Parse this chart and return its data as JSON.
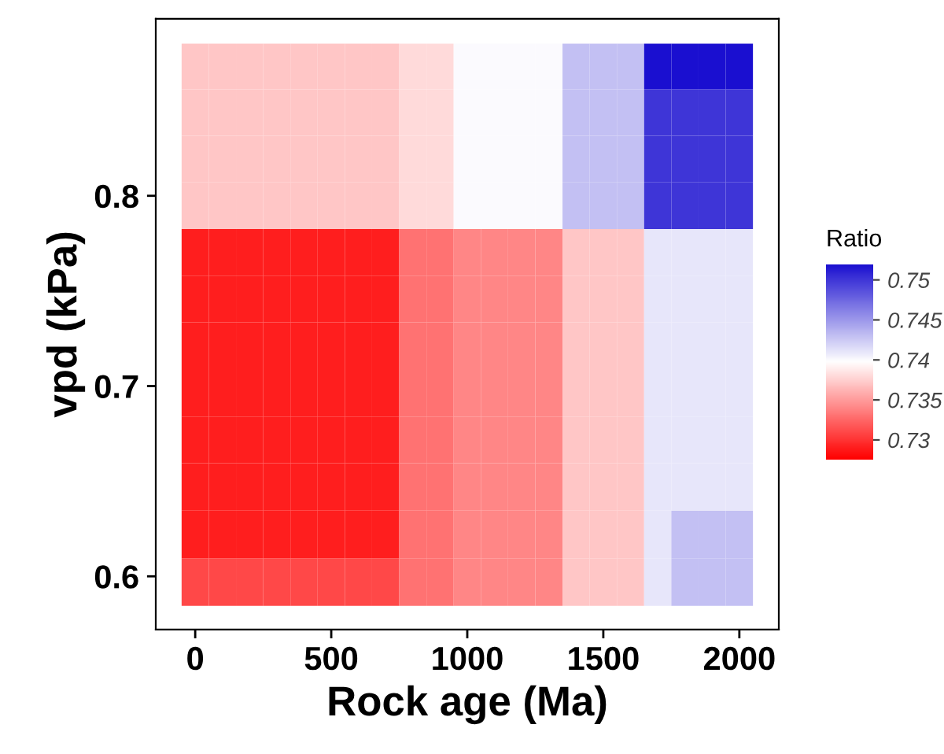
{
  "chart_data": {
    "type": "heatmap",
    "xlabel": "Rock age (Ma)",
    "ylabel": "vpd (kPa)",
    "clabel": "Ratio",
    "x": [
      0,
      100,
      200,
      300,
      400,
      500,
      600,
      700,
      800,
      900,
      1000,
      1100,
      1200,
      1300,
      1400,
      1500,
      1600,
      1700,
      1800,
      1900,
      2000
    ],
    "y": [
      0.868,
      0.844,
      0.819,
      0.795,
      0.77,
      0.746,
      0.721,
      0.696,
      0.672,
      0.647,
      0.622,
      0.597
    ],
    "xlim": [
      -145,
      2145
    ],
    "xticks": [
      0,
      500,
      1000,
      1500,
      2000
    ],
    "ylim": [
      0.572,
      0.893
    ],
    "yticks": [
      0.6,
      0.7,
      0.8
    ],
    "clim": [
      0.7275,
      0.752
    ],
    "cticks": [
      0.73,
      0.735,
      0.74,
      0.745,
      0.75
    ],
    "cells": [
      [
        0.737,
        0.737,
        0.737,
        0.737,
        0.737,
        0.737,
        0.737,
        0.737,
        0.738,
        0.738,
        0.74,
        0.74,
        0.74,
        0.74,
        0.743,
        0.743,
        0.743,
        0.752,
        0.752,
        0.752,
        0.752
      ],
      [
        0.737,
        0.737,
        0.737,
        0.737,
        0.737,
        0.737,
        0.737,
        0.737,
        0.738,
        0.738,
        0.74,
        0.74,
        0.74,
        0.74,
        0.743,
        0.743,
        0.743,
        0.75,
        0.75,
        0.75,
        0.75
      ],
      [
        0.737,
        0.737,
        0.737,
        0.737,
        0.737,
        0.737,
        0.737,
        0.737,
        0.738,
        0.738,
        0.74,
        0.74,
        0.74,
        0.74,
        0.743,
        0.743,
        0.743,
        0.75,
        0.75,
        0.75,
        0.75
      ],
      [
        0.737,
        0.737,
        0.737,
        0.737,
        0.737,
        0.737,
        0.737,
        0.737,
        0.738,
        0.738,
        0.74,
        0.74,
        0.74,
        0.74,
        0.743,
        0.743,
        0.743,
        0.75,
        0.75,
        0.75,
        0.75
      ],
      [
        0.729,
        0.729,
        0.729,
        0.729,
        0.729,
        0.729,
        0.729,
        0.729,
        0.733,
        0.733,
        0.734,
        0.734,
        0.734,
        0.734,
        0.737,
        0.737,
        0.737,
        0.741,
        0.741,
        0.741,
        0.741
      ],
      [
        0.729,
        0.729,
        0.729,
        0.729,
        0.729,
        0.729,
        0.729,
        0.729,
        0.733,
        0.733,
        0.734,
        0.734,
        0.734,
        0.734,
        0.737,
        0.737,
        0.737,
        0.741,
        0.741,
        0.741,
        0.741
      ],
      [
        0.729,
        0.729,
        0.729,
        0.729,
        0.729,
        0.729,
        0.729,
        0.729,
        0.733,
        0.733,
        0.734,
        0.734,
        0.734,
        0.734,
        0.737,
        0.737,
        0.737,
        0.741,
        0.741,
        0.741,
        0.741
      ],
      [
        0.729,
        0.729,
        0.729,
        0.729,
        0.729,
        0.729,
        0.729,
        0.729,
        0.733,
        0.733,
        0.734,
        0.734,
        0.734,
        0.734,
        0.737,
        0.737,
        0.737,
        0.741,
        0.741,
        0.741,
        0.741
      ],
      [
        0.729,
        0.729,
        0.729,
        0.729,
        0.729,
        0.729,
        0.729,
        0.729,
        0.733,
        0.733,
        0.734,
        0.734,
        0.734,
        0.734,
        0.737,
        0.737,
        0.737,
        0.741,
        0.741,
        0.741,
        0.741
      ],
      [
        0.729,
        0.729,
        0.729,
        0.729,
        0.729,
        0.729,
        0.729,
        0.729,
        0.733,
        0.733,
        0.734,
        0.734,
        0.734,
        0.734,
        0.737,
        0.737,
        0.737,
        0.741,
        0.741,
        0.741,
        0.741
      ],
      [
        0.729,
        0.729,
        0.729,
        0.729,
        0.729,
        0.729,
        0.729,
        0.729,
        0.733,
        0.733,
        0.734,
        0.734,
        0.734,
        0.734,
        0.737,
        0.737,
        0.737,
        0.741,
        0.743,
        0.743,
        0.743
      ],
      [
        0.731,
        0.731,
        0.731,
        0.731,
        0.731,
        0.731,
        0.731,
        0.731,
        0.733,
        0.733,
        0.734,
        0.734,
        0.734,
        0.734,
        0.737,
        0.737,
        0.737,
        0.741,
        0.743,
        0.743,
        0.743
      ]
    ]
  }
}
